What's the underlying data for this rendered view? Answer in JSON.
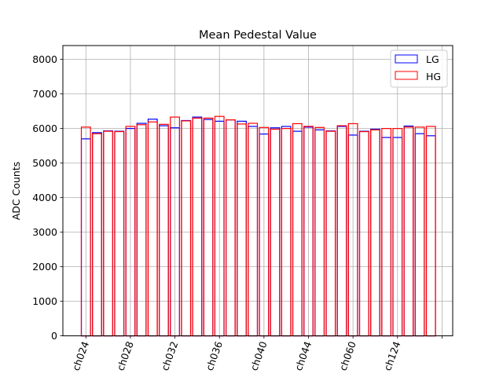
{
  "chart_data": {
    "type": "bar",
    "title": "Mean Pedestal Value",
    "xlabel": "",
    "ylabel": "ADC Counts",
    "ylim": [
      0,
      8400
    ],
    "yticks": [
      0,
      1000,
      2000,
      3000,
      4000,
      5000,
      6000,
      7000,
      8000
    ],
    "xtick_labels": [
      "ch024",
      "ch028",
      "ch032",
      "ch036",
      "ch040",
      "ch044",
      "ch060",
      "ch124"
    ],
    "xtick_label_rotation": 70,
    "grid": true,
    "legend_position": "top-right",
    "bar_count": 32,
    "series": [
      {
        "name": "LG",
        "color": "#0000ff",
        "values": [
          5700,
          5880,
          5930,
          5920,
          6000,
          6150,
          6270,
          6080,
          6020,
          6230,
          6330,
          6260,
          6210,
          6250,
          6210,
          6060,
          5840,
          6020,
          6060,
          5920,
          6040,
          5960,
          5930,
          6060,
          5810,
          5920,
          5980,
          5740,
          5740,
          6070,
          5850,
          5790
        ]
      },
      {
        "name": "HG",
        "color": "#ff0000",
        "values": [
          6040,
          5850,
          5920,
          5910,
          6060,
          6110,
          6190,
          6120,
          6330,
          6220,
          6300,
          6300,
          6350,
          6250,
          6130,
          6150,
          6030,
          5980,
          6000,
          6140,
          6060,
          6030,
          5920,
          6080,
          6140,
          5910,
          5960,
          6000,
          6000,
          6040,
          6040,
          6060
        ]
      }
    ]
  }
}
